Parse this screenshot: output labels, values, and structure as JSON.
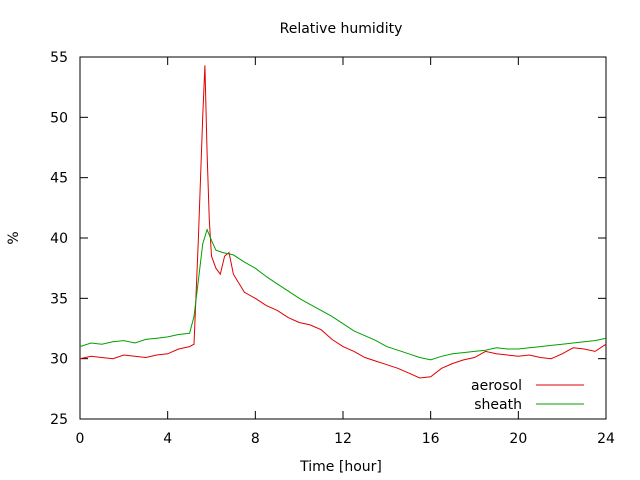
{
  "chart_data": {
    "type": "line",
    "title": "Relative humidity",
    "xlabel": "Time [hour]",
    "ylabel": "%",
    "xlim": [
      0,
      24
    ],
    "ylim": [
      25,
      55
    ],
    "xticks": [
      0,
      4,
      8,
      12,
      16,
      20,
      24
    ],
    "yticks": [
      25,
      30,
      35,
      40,
      45,
      50,
      55
    ],
    "grid": false,
    "legend_position": "bottom-right",
    "series": [
      {
        "name": "aerosol",
        "color": "#e00000",
        "x": [
          0,
          0.5,
          1,
          1.5,
          2,
          2.5,
          3,
          3.5,
          4,
          4.5,
          5,
          5.2,
          5.4,
          5.6,
          5.7,
          5.8,
          5.9,
          6.0,
          6.2,
          6.4,
          6.6,
          6.8,
          7,
          7.5,
          8,
          8.5,
          9,
          9.5,
          10,
          10.5,
          11,
          11.5,
          12,
          12.5,
          13,
          13.5,
          14,
          14.5,
          15,
          15.5,
          16,
          16.5,
          17,
          17.5,
          18,
          18.5,
          19,
          19.5,
          20,
          20.5,
          21,
          21.5,
          22,
          22.5,
          23,
          23.5,
          24
        ],
        "y": [
          30.0,
          30.2,
          30.1,
          30.0,
          30.3,
          30.2,
          30.1,
          30.3,
          30.4,
          30.8,
          31.0,
          31.2,
          40.0,
          50.0,
          54.3,
          47.0,
          41.5,
          38.5,
          37.5,
          37.0,
          38.5,
          38.8,
          37.0,
          35.5,
          35.0,
          34.4,
          34.0,
          33.4,
          33.0,
          32.8,
          32.4,
          31.6,
          31.0,
          30.6,
          30.1,
          29.8,
          29.5,
          29.2,
          28.8,
          28.4,
          28.5,
          29.2,
          29.6,
          29.9,
          30.1,
          30.6,
          30.4,
          30.3,
          30.2,
          30.3,
          30.1,
          30.0,
          30.4,
          30.9,
          30.8,
          30.6,
          31.2
        ]
      },
      {
        "name": "sheath",
        "color": "#00a000",
        "x": [
          0,
          0.5,
          1,
          1.5,
          2,
          2.5,
          3,
          3.5,
          4,
          4.5,
          5,
          5.2,
          5.4,
          5.6,
          5.8,
          6.0,
          6.2,
          6.5,
          7,
          7.5,
          8,
          8.5,
          9,
          9.5,
          10,
          10.5,
          11,
          11.5,
          12,
          12.5,
          13,
          13.5,
          14,
          14.5,
          15,
          15.5,
          16,
          16.5,
          17,
          17.5,
          18,
          18.5,
          19,
          19.5,
          20,
          20.5,
          21,
          21.5,
          22,
          22.5,
          23,
          23.5,
          24
        ],
        "y": [
          31.0,
          31.3,
          31.2,
          31.4,
          31.5,
          31.3,
          31.6,
          31.7,
          31.8,
          32.0,
          32.1,
          33.5,
          36.5,
          39.5,
          40.7,
          39.8,
          39.0,
          38.8,
          38.6,
          38.0,
          37.5,
          36.8,
          36.2,
          35.6,
          35.0,
          34.5,
          34.0,
          33.5,
          32.9,
          32.3,
          31.9,
          31.5,
          31.0,
          30.7,
          30.4,
          30.1,
          29.9,
          30.2,
          30.4,
          30.5,
          30.6,
          30.7,
          30.9,
          30.8,
          30.8,
          30.9,
          31.0,
          31.1,
          31.2,
          31.3,
          31.4,
          31.5,
          31.7
        ]
      }
    ]
  }
}
